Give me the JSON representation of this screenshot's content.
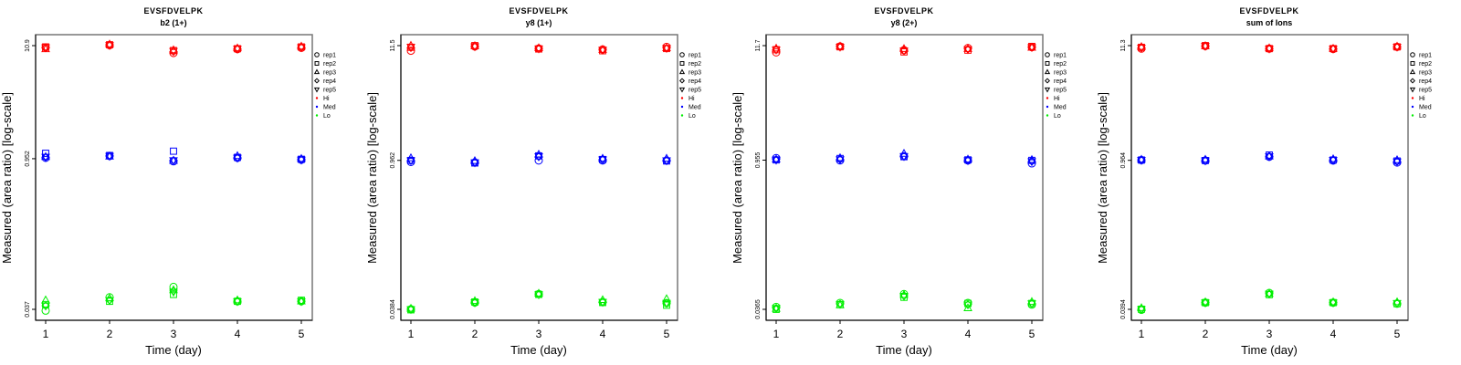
{
  "legend": {
    "placement": "right",
    "reps": [
      {
        "name": "rep1",
        "shape": "circle"
      },
      {
        "name": "rep2",
        "shape": "square"
      },
      {
        "name": "rep3",
        "shape": "triangle-up"
      },
      {
        "name": "rep4",
        "shape": "diamond"
      },
      {
        "name": "rep5",
        "shape": "triangle-down"
      }
    ],
    "groups": [
      {
        "name": "Hi",
        "color": "#ff0000"
      },
      {
        "name": "Med",
        "color": "#0000ff"
      },
      {
        "name": "Lo",
        "color": "#00ee00"
      }
    ]
  },
  "chart_data": [
    {
      "type": "scatter",
      "title": "EVSFDVELPK",
      "subtitle": "b2 (1+)",
      "xlabel": "Time (day)",
      "ylabel": "Measured (area ratio) [log-scale]",
      "yscale": "log",
      "x": [
        1,
        2,
        3,
        4,
        5
      ],
      "xticks": [
        "1",
        "2",
        "3",
        "4",
        "5"
      ],
      "yticks": [
        0.037,
        0.952,
        10.9
      ],
      "ytick_labels": [
        "0.037",
        "0.952",
        "10.9"
      ],
      "series": [
        {
          "name": "Hi",
          "values": [
            [
              10.5,
              10.6,
              10.1,
              10.4,
              10.5
            ],
            [
              11.0,
              11.1,
              11.2,
              11.1,
              11.0
            ],
            [
              9.3,
              9.8,
              9.9,
              9.6,
              9.7
            ],
            [
              10.1,
              10.2,
              10.3,
              10.1,
              10.2
            ],
            [
              10.4,
              10.6,
              10.7,
              10.5,
              10.5
            ]
          ]
        },
        {
          "name": "Med",
          "values": [
            [
              0.97,
              1.07,
              0.99,
              0.98,
              0.99
            ],
            [
              1.01,
              1.02,
              1.0,
              1.01,
              1.01
            ],
            [
              0.9,
              1.12,
              0.91,
              0.92,
              0.92
            ],
            [
              0.97,
              0.98,
              1.01,
              0.97,
              0.97
            ],
            [
              0.93,
              0.94,
              0.95,
              0.94,
              0.93
            ]
          ]
        },
        {
          "name": "Lo",
          "values": [
            [
              0.036,
              0.041,
              0.045,
              0.04,
              0.04
            ],
            [
              0.048,
              0.044,
              0.047,
              0.045,
              0.045
            ],
            [
              0.06,
              0.051,
              0.056,
              0.055,
              0.054
            ],
            [
              0.044,
              0.044,
              0.045,
              0.044,
              0.044
            ],
            [
              0.044,
              0.045,
              0.044,
              0.044,
              0.044
            ]
          ]
        }
      ]
    },
    {
      "type": "scatter",
      "title": "EVSFDVELPK",
      "subtitle": "y8 (1+)",
      "xlabel": "Time (day)",
      "ylabel": "Measured (area ratio) [log-scale]",
      "yscale": "log",
      "x": [
        1,
        2,
        3,
        4,
        5
      ],
      "xticks": [
        "1",
        "2",
        "3",
        "4",
        "5"
      ],
      "yticks": [
        0.0384,
        0.962,
        11.5
      ],
      "ytick_labels": [
        "0.0384",
        "0.962",
        "11.5"
      ],
      "series": [
        {
          "name": "Hi",
          "values": [
            [
              10.3,
              11.1,
              11.5,
              11.0,
              11.2
            ],
            [
              11.3,
              11.5,
              11.4,
              11.4,
              11.3
            ],
            [
              10.8,
              10.7,
              10.9,
              10.8,
              10.8
            ],
            [
              10.6,
              10.3,
              10.5,
              10.5,
              10.5
            ],
            [
              11.2,
              10.8,
              10.9,
              10.9,
              10.9
            ]
          ]
        },
        {
          "name": "Med",
          "values": [
            [
              0.93,
              0.96,
              1.01,
              0.96,
              0.96
            ],
            [
              0.92,
              0.91,
              0.95,
              0.92,
              0.92
            ],
            [
              0.96,
              1.06,
              1.09,
              1.04,
              1.05
            ],
            [
              0.96,
              0.98,
              1.0,
              0.98,
              0.98
            ],
            [
              0.96,
              0.95,
              1.0,
              0.96,
              0.96
            ]
          ]
        },
        {
          "name": "Lo",
          "values": [
            [
              0.0385,
              0.038,
              0.039,
              0.0385,
              0.0385
            ],
            [
              0.0445,
              0.045,
              0.046,
              0.0445,
              0.0445
            ],
            [
              0.0535,
              0.053,
              0.054,
              0.053,
              0.053
            ],
            [
              0.045,
              0.0445,
              0.047,
              0.045,
              0.045
            ],
            [
              0.044,
              0.042,
              0.048,
              0.044,
              0.044
            ]
          ]
        }
      ]
    },
    {
      "type": "scatter",
      "title": "EVSFDVELPK",
      "subtitle": "y8 (2+)",
      "xlabel": "Time (day)",
      "ylabel": "Measured (area ratio) [log-scale]",
      "yscale": "log",
      "x": [
        1,
        2,
        3,
        4,
        5
      ],
      "xticks": [
        "1",
        "2",
        "3",
        "4",
        "5"
      ],
      "yticks": [
        0.0365,
        0.955,
        11.7
      ],
      "ytick_labels": [
        "0.0365",
        "0.955",
        "11.7"
      ],
      "series": [
        {
          "name": "Hi",
          "values": [
            [
              10.1,
              10.7,
              11.0,
              10.7,
              10.7
            ],
            [
              11.5,
              11.4,
              11.5,
              11.5,
              11.4
            ],
            [
              10.6,
              10.2,
              10.9,
              10.5,
              10.5
            ],
            [
              11.1,
              10.6,
              10.9,
              10.9,
              10.8
            ],
            [
              11.3,
              11.5,
              11.2,
              11.3,
              11.3
            ]
          ]
        },
        {
          "name": "Med",
          "values": [
            [
              1.0,
              0.96,
              0.97,
              0.97,
              0.96
            ],
            [
              0.95,
              0.99,
              1.0,
              0.97,
              0.97
            ],
            [
              1.04,
              1.03,
              1.1,
              1.04,
              1.04
            ],
            [
              0.95,
              0.96,
              0.97,
              0.95,
              0.95
            ],
            [
              0.89,
              0.95,
              0.96,
              0.93,
              0.93
            ]
          ]
        },
        {
          "name": "Lo",
          "values": [
            [
              0.0385,
              0.0365,
              0.037,
              0.0375,
              0.0375
            ],
            [
              0.042,
              0.0405,
              0.04,
              0.041,
              0.041
            ],
            [
              0.051,
              0.0475,
              0.05,
              0.049,
              0.049
            ],
            [
              0.042,
              0.0415,
              0.0375,
              0.0405,
              0.0405
            ],
            [
              0.0405,
              0.0415,
              0.043,
              0.0415,
              0.0415
            ]
          ]
        }
      ]
    },
    {
      "type": "scatter",
      "title": "EVSFDVELPK",
      "subtitle": "sum of Ions",
      "xlabel": "Time (day)",
      "ylabel": "Measured (area ratio) [log-scale]",
      "yscale": "log",
      "x": [
        1,
        2,
        3,
        4,
        5
      ],
      "xticks": [
        "1",
        "2",
        "3",
        "4",
        "5"
      ],
      "yticks": [
        0.0394,
        0.964,
        11.3
      ],
      "ytick_labels": [
        "0.0394",
        "0.964",
        "11.3"
      ],
      "series": [
        {
          "name": "Hi",
          "values": [
            [
              10.6,
              10.9,
              11.0,
              10.8,
              10.8
            ],
            [
              11.2,
              11.3,
              11.2,
              11.2,
              11.2
            ],
            [
              10.6,
              10.6,
              10.7,
              10.6,
              10.6
            ],
            [
              10.5,
              10.6,
              10.6,
              10.6,
              10.6
            ],
            [
              11.0,
              11.0,
              11.1,
              11.0,
              11.0
            ]
          ]
        },
        {
          "name": "Med",
          "values": [
            [
              0.97,
              0.97,
              0.98,
              0.97,
              0.97
            ],
            [
              0.96,
              0.96,
              0.98,
              0.96,
              0.96
            ],
            [
              1.04,
              1.08,
              1.05,
              1.05,
              1.05
            ],
            [
              0.96,
              0.97,
              0.99,
              0.97,
              0.97
            ],
            [
              0.92,
              0.95,
              0.97,
              0.94,
              0.94
            ]
          ]
        },
        {
          "name": "Lo",
          "values": [
            [
              0.039,
              0.0395,
              0.0405,
              0.0395,
              0.0395
            ],
            [
              0.0455,
              0.0455,
              0.046,
              0.0455,
              0.0455
            ],
            [
              0.056,
              0.054,
              0.055,
              0.055,
              0.055
            ],
            [
              0.0455,
              0.0455,
              0.046,
              0.0455,
              0.0455
            ],
            [
              0.0445,
              0.0445,
              0.046,
              0.045,
              0.045
            ]
          ]
        }
      ]
    }
  ]
}
